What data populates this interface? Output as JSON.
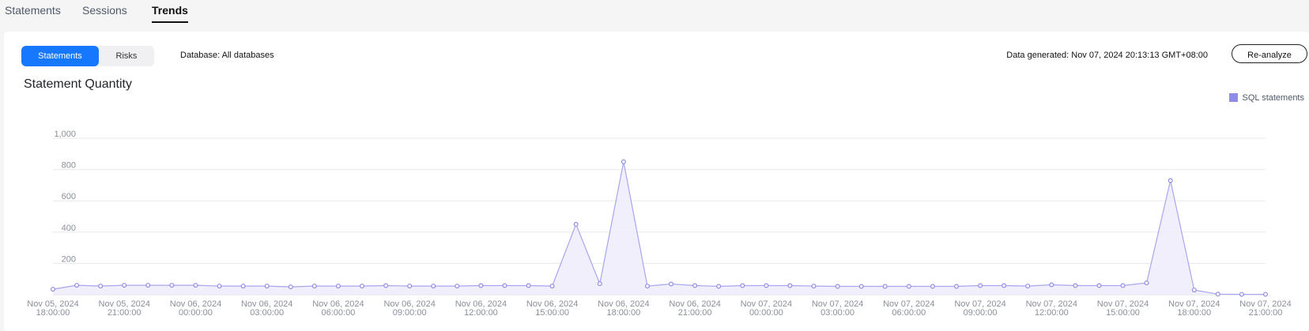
{
  "tabs": [
    {
      "label": "Statements",
      "active": false
    },
    {
      "label": "Sessions",
      "active": false
    },
    {
      "label": "Trends",
      "active": true
    }
  ],
  "toolbar": {
    "segment": [
      {
        "label": "Statements",
        "active": true
      },
      {
        "label": "Risks",
        "active": false
      }
    ],
    "database_label": "Database: All databases",
    "data_generated": "Data generated: Nov 07, 2024 20:13:13 GMT+08:00",
    "reanalyze_label": "Re-analyze"
  },
  "chart_title": "Statement Quantity",
  "legend_label": "SQL statements",
  "colors": {
    "accent": "#1677ff",
    "series_line": "#a8a6ee",
    "series_fill": "#eeedfb",
    "series_marker": "#8f8ce6",
    "grid": "#e8e8e8"
  },
  "chart_data": {
    "type": "area",
    "title": "Statement Quantity",
    "xlabel": "",
    "ylabel": "",
    "ylim": [
      0,
      1000
    ],
    "y_ticks": [
      "200",
      "400",
      "600",
      "800",
      "1,000"
    ],
    "y_tick_values": [
      200,
      400,
      600,
      800,
      1000
    ],
    "x_tick_labels": [
      [
        "Nov 05, 2024",
        "18:00:00"
      ],
      [
        "Nov 05, 2024",
        "21:00:00"
      ],
      [
        "Nov 06, 2024",
        "00:00:00"
      ],
      [
        "Nov 06, 2024",
        "03:00:00"
      ],
      [
        "Nov 06, 2024",
        "06:00:00"
      ],
      [
        "Nov 06, 2024",
        "09:00:00"
      ],
      [
        "Nov 06, 2024",
        "12:00:00"
      ],
      [
        "Nov 06, 2024",
        "15:00:00"
      ],
      [
        "Nov 06, 2024",
        "18:00:00"
      ],
      [
        "Nov 06, 2024",
        "21:00:00"
      ],
      [
        "Nov 07, 2024",
        "00:00:00"
      ],
      [
        "Nov 07, 2024",
        "03:00:00"
      ],
      [
        "Nov 07, 2024",
        "06:00:00"
      ],
      [
        "Nov 07, 2024",
        "09:00:00"
      ],
      [
        "Nov 07, 2024",
        "12:00:00"
      ],
      [
        "Nov 07, 2024",
        "15:00:00"
      ],
      [
        "Nov 07, 2024",
        "18:00:00"
      ],
      [
        "Nov 07, 2024",
        "21:00:00"
      ]
    ],
    "legend_position": "top-right",
    "grid": true,
    "series": [
      {
        "name": "SQL statements",
        "values": [
          35,
          60,
          55,
          60,
          60,
          60,
          60,
          55,
          55,
          55,
          50,
          55,
          55,
          55,
          58,
          55,
          55,
          55,
          58,
          58,
          58,
          55,
          450,
          70,
          850,
          55,
          68,
          58,
          53,
          58,
          58,
          58,
          55,
          53,
          53,
          53,
          53,
          53,
          53,
          58,
          58,
          55,
          63,
          58,
          58,
          58,
          75,
          730,
          30,
          3,
          2,
          2
        ]
      }
    ]
  }
}
